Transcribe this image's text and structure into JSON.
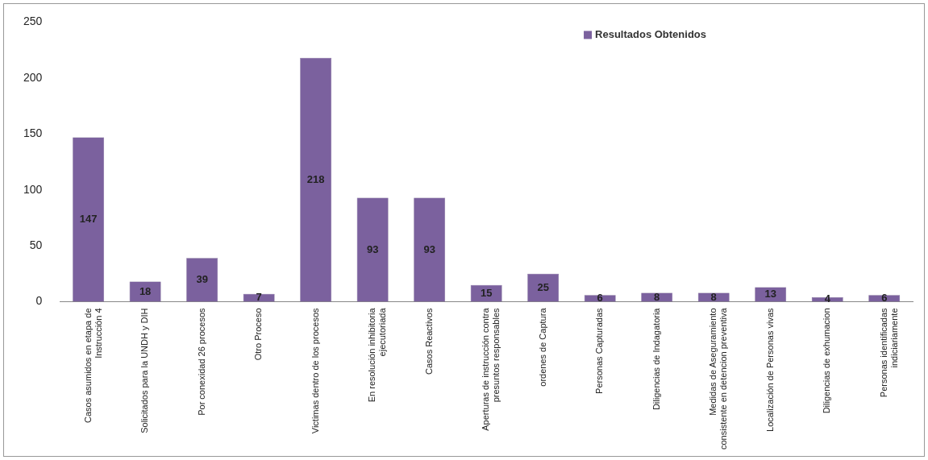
{
  "chart_data": {
    "type": "bar",
    "categories": [
      "Casos asumidos en etapa de\nInstrucción 4",
      "Solicitados para la UNDH y DIH",
      "Por conexidad 26 procesos",
      "Otro Proceso",
      "Victimas dentro de los procesos",
      "En resolución inhibitoria\nejecutoriada",
      "Casos Reactivos",
      "Aperturas de instrucción contra\npresuntos responsables",
      "ordenes de Captura",
      "Personas Capturadas",
      "Diligencias de Indagatoria",
      "Medidas de Aseguramiento\nconsistente en detencion preventiva",
      "Localización de Personas vivas",
      "Diligencias de exhumacion",
      "Personas identificadas\nindiciariamente"
    ],
    "series": [
      {
        "name": "Resultados Obtenidos",
        "color": "#7b619e",
        "values": [
          147,
          18,
          39,
          7,
          218,
          93,
          93,
          15,
          25,
          6,
          8,
          8,
          13,
          4,
          6
        ]
      }
    ],
    "ylim": [
      0,
      250
    ],
    "yticks": [
      0,
      50,
      100,
      150,
      200,
      250
    ],
    "data_labels": true,
    "legend": "top right",
    "grid": false
  }
}
